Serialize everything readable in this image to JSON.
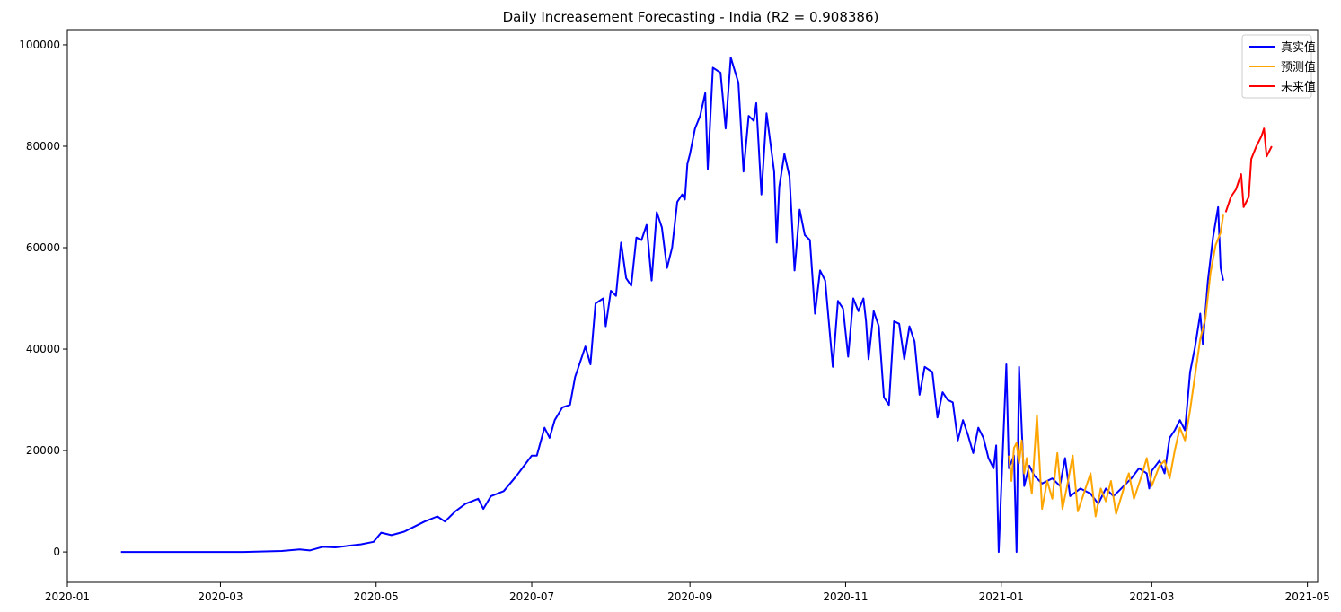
{
  "chart_data": {
    "type": "line",
    "title": "Daily Increasement Forecasting - India (R2 = 0.908386)",
    "xlabel": "",
    "ylabel": "",
    "x_axis_type": "date",
    "xlim": [
      "2020-01-01",
      "2021-05-05"
    ],
    "ylim": [
      -6000,
      103000
    ],
    "x_ticks": [
      "2020-01",
      "2020-03",
      "2020-05",
      "2020-07",
      "2020-09",
      "2020-11",
      "2021-01",
      "2021-03",
      "2021-05"
    ],
    "x_tick_dates": [
      "2020-01-01",
      "2020-03-01",
      "2020-05-01",
      "2020-07-01",
      "2020-09-01",
      "2020-11-01",
      "2021-01-01",
      "2021-03-01",
      "2021-05-01"
    ],
    "y_ticks": [
      0,
      20000,
      40000,
      60000,
      80000,
      100000
    ],
    "grid": false,
    "legend_position": "top-right",
    "series": [
      {
        "name": "真实值",
        "color": "#0000ff",
        "points": [
          [
            "2020-01-22",
            0
          ],
          [
            "2020-02-15",
            0
          ],
          [
            "2020-03-10",
            0
          ],
          [
            "2020-03-25",
            200
          ],
          [
            "2020-04-01",
            500
          ],
          [
            "2020-04-05",
            300
          ],
          [
            "2020-04-10",
            1000
          ],
          [
            "2020-04-15",
            900
          ],
          [
            "2020-04-20",
            1200
          ],
          [
            "2020-04-25",
            1500
          ],
          [
            "2020-04-30",
            2000
          ],
          [
            "2020-05-03",
            3800
          ],
          [
            "2020-05-07",
            3300
          ],
          [
            "2020-05-12",
            4000
          ],
          [
            "2020-05-16",
            5000
          ],
          [
            "2020-05-20",
            6000
          ],
          [
            "2020-05-25",
            7000
          ],
          [
            "2020-05-28",
            6000
          ],
          [
            "2020-06-01",
            8000
          ],
          [
            "2020-06-05",
            9500
          ],
          [
            "2020-06-10",
            10500
          ],
          [
            "2020-06-12",
            8500
          ],
          [
            "2020-06-15",
            11000
          ],
          [
            "2020-06-20",
            12000
          ],
          [
            "2020-06-25",
            15000
          ],
          [
            "2020-06-28",
            17000
          ],
          [
            "2020-07-01",
            19000
          ],
          [
            "2020-07-03",
            19000
          ],
          [
            "2020-07-06",
            24500
          ],
          [
            "2020-07-08",
            22500
          ],
          [
            "2020-07-10",
            26000
          ],
          [
            "2020-07-13",
            28500
          ],
          [
            "2020-07-16",
            29000
          ],
          [
            "2020-07-18",
            34500
          ],
          [
            "2020-07-20",
            37500
          ],
          [
            "2020-07-22",
            40500
          ],
          [
            "2020-07-24",
            37000
          ],
          [
            "2020-07-26",
            49000
          ],
          [
            "2020-07-29",
            50000
          ],
          [
            "2020-07-30",
            44500
          ],
          [
            "2020-08-01",
            51500
          ],
          [
            "2020-08-03",
            50500
          ],
          [
            "2020-08-05",
            61000
          ],
          [
            "2020-08-07",
            54000
          ],
          [
            "2020-08-09",
            52500
          ],
          [
            "2020-08-11",
            62000
          ],
          [
            "2020-08-13",
            61500
          ],
          [
            "2020-08-15",
            64500
          ],
          [
            "2020-08-17",
            53500
          ],
          [
            "2020-08-19",
            67000
          ],
          [
            "2020-08-21",
            64000
          ],
          [
            "2020-08-23",
            56000
          ],
          [
            "2020-08-25",
            60000
          ],
          [
            "2020-08-27",
            69000
          ],
          [
            "2020-08-29",
            70500
          ],
          [
            "2020-08-30",
            69500
          ],
          [
            "2020-08-31",
            76500
          ],
          [
            "2020-09-01",
            78500
          ],
          [
            "2020-09-03",
            83500
          ],
          [
            "2020-09-05",
            86000
          ],
          [
            "2020-09-07",
            90500
          ],
          [
            "2020-09-08",
            75500
          ],
          [
            "2020-09-10",
            95500
          ],
          [
            "2020-09-13",
            94500
          ],
          [
            "2020-09-15",
            83500
          ],
          [
            "2020-09-17",
            97500
          ],
          [
            "2020-09-20",
            92500
          ],
          [
            "2020-09-22",
            75000
          ],
          [
            "2020-09-24",
            86000
          ],
          [
            "2020-09-26",
            85000
          ],
          [
            "2020-09-27",
            88500
          ],
          [
            "2020-09-29",
            70500
          ],
          [
            "2020-10-01",
            86500
          ],
          [
            "2020-10-04",
            75000
          ],
          [
            "2020-10-05",
            61000
          ],
          [
            "2020-10-06",
            72000
          ],
          [
            "2020-10-08",
            78500
          ],
          [
            "2020-10-10",
            74000
          ],
          [
            "2020-10-12",
            55500
          ],
          [
            "2020-10-14",
            67500
          ],
          [
            "2020-10-16",
            62500
          ],
          [
            "2020-10-18",
            61500
          ],
          [
            "2020-10-20",
            47000
          ],
          [
            "2020-10-22",
            55500
          ],
          [
            "2020-10-24",
            53500
          ],
          [
            "2020-10-27",
            36500
          ],
          [
            "2020-10-29",
            49500
          ],
          [
            "2020-10-31",
            48000
          ],
          [
            "2020-11-02",
            38500
          ],
          [
            "2020-11-04",
            50000
          ],
          [
            "2020-11-06",
            47500
          ],
          [
            "2020-11-08",
            50000
          ],
          [
            "2020-11-09",
            45500
          ],
          [
            "2020-11-10",
            38000
          ],
          [
            "2020-11-12",
            47500
          ],
          [
            "2020-11-14",
            44500
          ],
          [
            "2020-11-16",
            30500
          ],
          [
            "2020-11-18",
            29000
          ],
          [
            "2020-11-20",
            45500
          ],
          [
            "2020-11-22",
            45000
          ],
          [
            "2020-11-24",
            38000
          ],
          [
            "2020-11-26",
            44500
          ],
          [
            "2020-11-28",
            41500
          ],
          [
            "2020-11-30",
            31000
          ],
          [
            "2020-12-02",
            36500
          ],
          [
            "2020-12-05",
            35500
          ],
          [
            "2020-12-07",
            26500
          ],
          [
            "2020-12-09",
            31500
          ],
          [
            "2020-12-11",
            30000
          ],
          [
            "2020-12-13",
            29500
          ],
          [
            "2020-12-15",
            22000
          ],
          [
            "2020-12-17",
            26000
          ],
          [
            "2020-12-19",
            23000
          ],
          [
            "2020-12-21",
            19500
          ],
          [
            "2020-12-23",
            24500
          ],
          [
            "2020-12-25",
            22500
          ],
          [
            "2020-12-27",
            18500
          ],
          [
            "2020-12-29",
            16500
          ],
          [
            "2020-12-30",
            21000
          ],
          [
            "2020-12-31",
            0
          ],
          [
            "2021-01-03",
            37000
          ],
          [
            "2021-01-04",
            16500
          ],
          [
            "2021-01-06",
            19000
          ],
          [
            "2021-01-07",
            0
          ],
          [
            "2021-01-08",
            36500
          ],
          [
            "2021-01-10",
            13000
          ],
          [
            "2021-01-12",
            17000
          ],
          [
            "2021-01-14",
            15000
          ],
          [
            "2021-01-17",
            13500
          ],
          [
            "2021-01-19",
            14000
          ],
          [
            "2021-01-21",
            14500
          ],
          [
            "2021-01-24",
            13000
          ],
          [
            "2021-01-26",
            18500
          ],
          [
            "2021-01-28",
            11000
          ],
          [
            "2021-02-01",
            12500
          ],
          [
            "2021-02-05",
            11500
          ],
          [
            "2021-02-08",
            9500
          ],
          [
            "2021-02-11",
            12500
          ],
          [
            "2021-02-14",
            11000
          ],
          [
            "2021-02-17",
            12500
          ],
          [
            "2021-02-21",
            14500
          ],
          [
            "2021-02-24",
            16500
          ],
          [
            "2021-02-27",
            15500
          ],
          [
            "2021-02-28",
            12500
          ],
          [
            "2021-03-01",
            16000
          ],
          [
            "2021-03-04",
            18000
          ],
          [
            "2021-03-06",
            15500
          ],
          [
            "2021-03-08",
            22500
          ],
          [
            "2021-03-10",
            24000
          ],
          [
            "2021-03-12",
            26000
          ],
          [
            "2021-03-14",
            24000
          ],
          [
            "2021-03-16",
            35500
          ],
          [
            "2021-03-18",
            40500
          ],
          [
            "2021-03-20",
            47000
          ],
          [
            "2021-03-21",
            41000
          ],
          [
            "2021-03-23",
            53500
          ],
          [
            "2021-03-25",
            62000
          ],
          [
            "2021-03-27",
            68000
          ],
          [
            "2021-03-28",
            56000
          ],
          [
            "2021-03-29",
            53500
          ]
        ]
      },
      {
        "name": "预测值",
        "color": "#ffa500",
        "points": [
          [
            "2021-01-04",
            19000
          ],
          [
            "2021-01-05",
            14000
          ],
          [
            "2021-01-06",
            20500
          ],
          [
            "2021-01-07",
            21500
          ],
          [
            "2021-01-08",
            17500
          ],
          [
            "2021-01-09",
            22000
          ],
          [
            "2021-01-10",
            15500
          ],
          [
            "2021-01-11",
            18500
          ],
          [
            "2021-01-13",
            11500
          ],
          [
            "2021-01-15",
            27000
          ],
          [
            "2021-01-17",
            8500
          ],
          [
            "2021-01-19",
            14000
          ],
          [
            "2021-01-21",
            10500
          ],
          [
            "2021-01-23",
            19500
          ],
          [
            "2021-01-25",
            8500
          ],
          [
            "2021-01-27",
            13500
          ],
          [
            "2021-01-29",
            19000
          ],
          [
            "2021-01-31",
            8000
          ],
          [
            "2021-02-03",
            12500
          ],
          [
            "2021-02-05",
            15500
          ],
          [
            "2021-02-07",
            7000
          ],
          [
            "2021-02-09",
            12500
          ],
          [
            "2021-02-11",
            10000
          ],
          [
            "2021-02-13",
            14000
          ],
          [
            "2021-02-15",
            7500
          ],
          [
            "2021-02-18",
            12500
          ],
          [
            "2021-02-20",
            15500
          ],
          [
            "2021-02-22",
            10500
          ],
          [
            "2021-02-25",
            15000
          ],
          [
            "2021-02-27",
            18500
          ],
          [
            "2021-03-01",
            13000
          ],
          [
            "2021-03-04",
            17000
          ],
          [
            "2021-03-06",
            18000
          ],
          [
            "2021-03-08",
            14500
          ],
          [
            "2021-03-10",
            20000
          ],
          [
            "2021-03-12",
            24500
          ],
          [
            "2021-03-14",
            22000
          ],
          [
            "2021-03-16",
            28000
          ],
          [
            "2021-03-18",
            35000
          ],
          [
            "2021-03-20",
            42000
          ],
          [
            "2021-03-22",
            46000
          ],
          [
            "2021-03-24",
            55000
          ],
          [
            "2021-03-26",
            60500
          ],
          [
            "2021-03-28",
            63000
          ],
          [
            "2021-03-29",
            66500
          ]
        ]
      },
      {
        "name": "未来值",
        "color": "#ff0000",
        "points": [
          [
            "2021-03-30",
            67000
          ],
          [
            "2021-04-01",
            70000
          ],
          [
            "2021-04-03",
            71500
          ],
          [
            "2021-04-05",
            74500
          ],
          [
            "2021-04-06",
            68000
          ],
          [
            "2021-04-08",
            70000
          ],
          [
            "2021-04-09",
            77500
          ],
          [
            "2021-04-11",
            80000
          ],
          [
            "2021-04-13",
            82000
          ],
          [
            "2021-04-14",
            83500
          ],
          [
            "2021-04-15",
            78000
          ],
          [
            "2021-04-17",
            80000
          ]
        ]
      }
    ]
  }
}
